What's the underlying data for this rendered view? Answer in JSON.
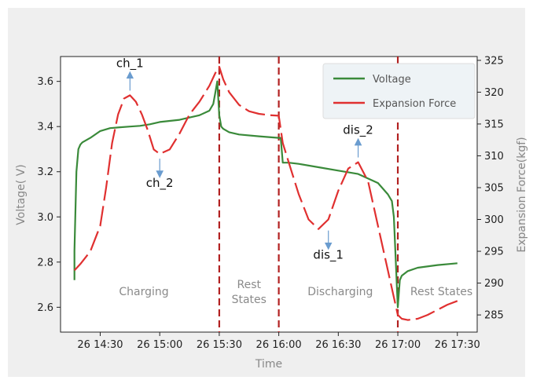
{
  "chart_data": {
    "type": "line",
    "xlabel": "Time",
    "ylabel": "Voltage( V)",
    "y2label": "Expansion Force(kgf)",
    "x_ticks": [
      "26  14:30",
      "26  15:00",
      "26  15:30",
      "26  16:00",
      "26  16:30",
      "26  17:00",
      "26  17:30"
    ],
    "xlim": [
      "26 14:10",
      "26 17:40"
    ],
    "ylim": [
      2.49,
      3.71
    ],
    "y_ticks": [
      "2.6",
      "2.8",
      "3.0",
      "3.2",
      "3.4",
      "3.6"
    ],
    "y2lim": [
      282.3,
      325.6
    ],
    "y2_ticks": [
      "285",
      "290",
      "295",
      "300",
      "305",
      "310",
      "315",
      "320",
      "325"
    ],
    "grid": false,
    "legend": "top-right",
    "series": [
      {
        "name": "Voltage",
        "axis": "left",
        "color": "#3a8a3a",
        "x": [
          "26 14:17",
          "26 14:17",
          "26 14:18",
          "26 14:19",
          "26 14:20",
          "26 14:21",
          "26 14:25",
          "26 14:30",
          "26 14:35",
          "26 14:40",
          "26 14:45",
          "26 14:50",
          "26 14:55",
          "26 15:00",
          "26 15:05",
          "26 15:10",
          "26 15:15",
          "26 15:20",
          "26 15:25",
          "26 15:27",
          "26 15:28",
          "26 15:29",
          "26 15:30",
          "26 15:31",
          "26 15:32",
          "26 15:35",
          "26 15:40",
          "26 15:50",
          "26 16:00",
          "26 16:01",
          "26 16:02",
          "26 16:05",
          "26 16:10",
          "26 16:20",
          "26 16:30",
          "26 16:40",
          "26 16:45",
          "26 16:50",
          "26 16:55",
          "26 16:57",
          "26 16:58",
          "26 16:59",
          "26 17:00",
          "26 17:01",
          "26 17:02",
          "26 17:05",
          "26 17:10",
          "26 17:20",
          "26 17:30"
        ],
        "y": [
          2.72,
          2.85,
          3.2,
          3.3,
          3.32,
          3.33,
          3.35,
          3.38,
          3.393,
          3.397,
          3.4,
          3.403,
          3.41,
          3.42,
          3.425,
          3.43,
          3.44,
          3.45,
          3.47,
          3.5,
          3.55,
          3.6,
          3.45,
          3.4,
          3.39,
          3.375,
          3.365,
          3.357,
          3.35,
          3.35,
          3.24,
          3.24,
          3.235,
          3.22,
          3.205,
          3.19,
          3.17,
          3.15,
          3.1,
          3.07,
          3.0,
          2.8,
          2.6,
          2.72,
          2.74,
          2.76,
          2.775,
          2.787,
          2.795
        ]
      },
      {
        "name": "Expansion Force",
        "axis": "right",
        "color": "#e03030",
        "x": [
          "26 14:17",
          "26 14:20",
          "26 14:25",
          "26 14:30",
          "26 14:33",
          "26 14:36",
          "26 14:39",
          "26 14:42",
          "26 14:45",
          "26 14:48",
          "26 14:51",
          "26 14:54",
          "26 14:57",
          "26 15:00",
          "26 15:05",
          "26 15:10",
          "26 15:15",
          "26 15:20",
          "26 15:25",
          "26 15:28",
          "26 15:30",
          "26 15:32",
          "26 15:35",
          "26 15:40",
          "26 15:45",
          "26 15:50",
          "26 15:55",
          "26 16:00",
          "26 16:02",
          "26 16:05",
          "26 16:10",
          "26 16:15",
          "26 16:20",
          "26 16:25",
          "26 16:30",
          "26 16:35",
          "26 16:40",
          "26 16:45",
          "26 16:50",
          "26 16:55",
          "26 17:00",
          "26 17:02",
          "26 17:05",
          "26 17:10",
          "26 17:15",
          "26 17:20",
          "26 17:25",
          "26 17:30"
        ],
        "y": [
          292,
          293,
          295,
          299,
          305,
          312,
          316.5,
          319,
          319.5,
          318.5,
          316.5,
          314,
          311,
          310.3,
          311,
          313.5,
          316.5,
          318.5,
          321,
          323,
          324,
          322,
          320,
          318,
          317,
          316.6,
          316.4,
          316.3,
          312,
          309,
          304,
          300,
          298.5,
          300,
          304.5,
          308,
          309,
          306,
          299,
          292,
          285,
          284.4,
          284.2,
          284.4,
          285,
          285.8,
          286.6,
          287.2
        ]
      }
    ],
    "phases": [
      {
        "label_lines": [
          "Charging"
        ],
        "x_center": "26 14:52"
      },
      {
        "label_lines": [
          "Rest",
          "States"
        ],
        "x_center": "26 15:45"
      },
      {
        "label_lines": [
          "Discharging"
        ],
        "x_center": "26 16:31"
      },
      {
        "label_lines": [
          "Rest States"
        ],
        "x_center": "26 17:22"
      }
    ],
    "boundaries": [
      "26 15:30",
      "26 16:00",
      "26 17:00"
    ],
    "annotations": [
      {
        "text": "ch_1",
        "x": "26 14:45",
        "y2": 319.5,
        "direction": "up"
      },
      {
        "text": "ch_2",
        "x": "26 15:00",
        "y2": 310.3,
        "direction": "down"
      },
      {
        "text": "dis_1",
        "x": "26 16:25",
        "y2": 299,
        "direction": "down"
      },
      {
        "text": "dis_2",
        "x": "26 16:40",
        "y2": 309,
        "direction": "up"
      }
    ]
  }
}
